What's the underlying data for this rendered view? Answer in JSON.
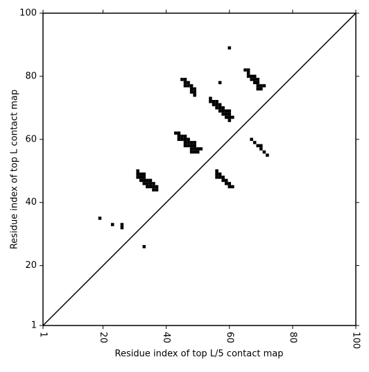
{
  "chart_data": {
    "type": "scatter",
    "marker": "square",
    "color": "#000000",
    "xlabel": "Residue index of top L/5 contact map",
    "ylabel": "Residue index of top L contact map",
    "xlim": [
      1,
      100
    ],
    "ylim": [
      1,
      100
    ],
    "xticks": [
      1,
      20,
      40,
      60,
      80,
      100
    ],
    "yticks": [
      1,
      20,
      40,
      60,
      80,
      100
    ],
    "x": [
      19,
      23,
      26,
      26,
      33,
      31,
      31,
      32,
      33,
      31,
      32,
      33,
      32,
      33,
      34,
      35,
      33,
      34,
      35,
      36,
      34,
      35,
      36,
      37,
      36,
      37,
      43,
      44,
      44,
      45,
      46,
      44,
      45,
      46,
      47,
      46,
      47,
      48,
      49,
      46,
      47,
      48,
      49,
      48,
      49,
      50,
      51,
      48,
      49,
      50,
      45,
      46,
      46,
      47,
      46,
      47,
      48,
      48,
      49,
      48,
      49,
      49,
      57,
      60,
      54,
      54,
      55,
      56,
      55,
      56,
      57,
      56,
      57,
      58,
      57,
      58,
      59,
      60,
      58,
      59,
      60,
      59,
      60,
      61,
      60,
      65,
      66,
      66,
      66,
      67,
      68,
      67,
      68,
      69,
      68,
      69,
      69,
      70,
      71,
      69,
      70,
      56,
      56,
      57,
      56,
      57,
      58,
      58,
      59,
      59,
      60,
      60,
      61,
      67,
      68,
      69,
      70,
      70,
      71,
      72
    ],
    "y": [
      35,
      33,
      33,
      32,
      26,
      50,
      49,
      49,
      49,
      48,
      48,
      48,
      47,
      47,
      47,
      47,
      46,
      46,
      46,
      46,
      45,
      45,
      45,
      45,
      44,
      44,
      62,
      62,
      61,
      61,
      61,
      60,
      60,
      60,
      60,
      59,
      59,
      59,
      59,
      58,
      58,
      58,
      58,
      57,
      57,
      57,
      57,
      56,
      56,
      56,
      79,
      79,
      78,
      78,
      77,
      77,
      77,
      76,
      76,
      75,
      75,
      74,
      78,
      89,
      73,
      72,
      72,
      72,
      71,
      71,
      71,
      70,
      70,
      70,
      69,
      69,
      69,
      69,
      68,
      68,
      68,
      67,
      67,
      67,
      66,
      82,
      82,
      81,
      80,
      80,
      80,
      79,
      79,
      79,
      78,
      78,
      77,
      77,
      77,
      76,
      76,
      50,
      49,
      49,
      48,
      48,
      48,
      47,
      47,
      46,
      46,
      45,
      45,
      60,
      59,
      58,
      58,
      57,
      56,
      55
    ]
  }
}
